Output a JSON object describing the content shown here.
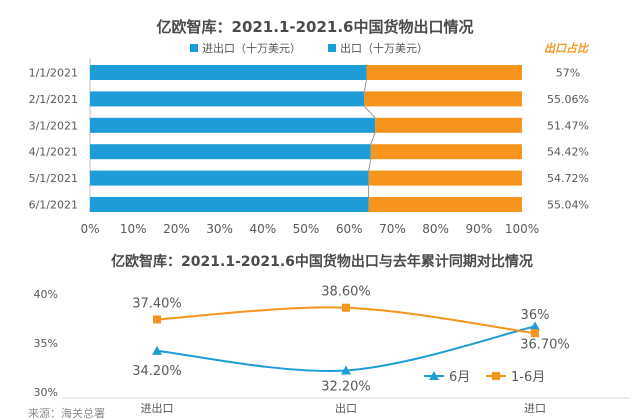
{
  "colors": {
    "blue": "#1E9CD7",
    "orange": "#F7941D",
    "title": "#4A4A4A",
    "axis": "#BFBFBF",
    "text": "#595959",
    "share_label": "#F7941D"
  },
  "chart_data": [
    {
      "type": "bar",
      "stacked": true,
      "orientation": "horizontal",
      "title": "亿欧智库：2021.1-2021.6中国货物出口情况",
      "categories": [
        "1/1/2021",
        "2/1/2021",
        "3/1/2021",
        "4/1/2021",
        "5/1/2021",
        "6/1/2021"
      ],
      "series": [
        {
          "name": "进出口（十万美元）",
          "values": [
            64,
            63.5,
            66,
            65,
            64.5,
            64.5
          ]
        },
        {
          "name": "出口（十万美元）",
          "values": [
            36,
            36.5,
            34,
            35,
            35.5,
            35.5
          ]
        }
      ],
      "share_header": "出口占比",
      "share_labels": [
        "57%",
        "55.06%",
        "51.47%",
        "54.42%",
        "54.72%",
        "55.04%"
      ],
      "xticks": [
        "0%",
        "10%",
        "20%",
        "30%",
        "40%",
        "50%",
        "60%",
        "70%",
        "80%",
        "90%",
        "100%"
      ],
      "xlim": [
        0,
        100
      ],
      "legend": "top-center"
    },
    {
      "type": "line",
      "title": "亿欧智库：2021.1-2021.6中国货物出口与去年累计同期对比情况",
      "categories": [
        "进出口",
        "出口",
        "进口"
      ],
      "series": [
        {
          "name": "6月",
          "values": [
            34.2,
            32.2,
            36.7
          ],
          "labels": [
            "34.20%",
            "32.20%",
            "36.70%"
          ]
        },
        {
          "name": "1-6月",
          "values": [
            37.4,
            38.6,
            36.0
          ],
          "labels": [
            "37.40%",
            "38.60%",
            "36%"
          ]
        }
      ],
      "yticks": [
        "30%",
        "35%",
        "40%"
      ],
      "ylim": [
        30,
        40
      ],
      "legend": "bottom-right"
    }
  ],
  "source": "来源：海关总署"
}
